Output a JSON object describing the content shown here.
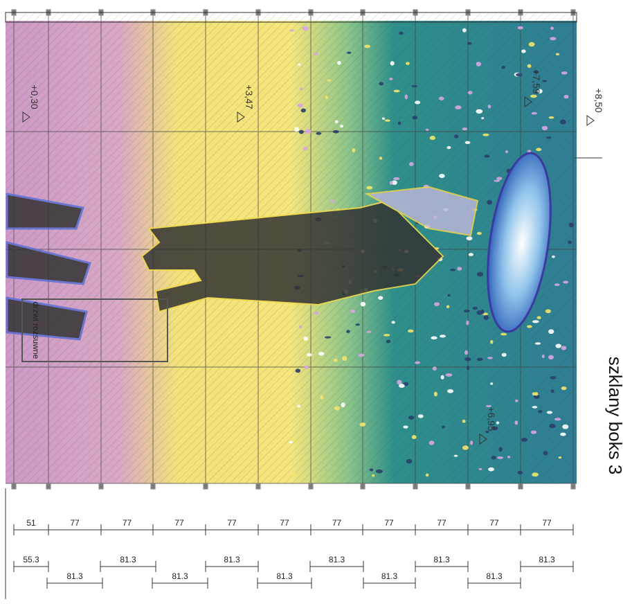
{
  "title": "szklany boks 3",
  "levels": [
    "+0,30",
    "+3,47",
    "+7,59",
    "+6,95",
    "+8,50"
  ],
  "door_label": "drzwi rozsuwne",
  "dimensions": {
    "row1": [
      "51",
      "77",
      "77",
      "77",
      "77",
      "77",
      "77",
      "77",
      "77",
      "77",
      "77"
    ],
    "row2_top": [
      "55.3",
      "81.3",
      "81.3",
      "81.3",
      "81.3",
      "81.3"
    ],
    "row2_bottom": [
      "81.3",
      "81.3",
      "81.3",
      "81.3",
      "81.3"
    ]
  }
}
